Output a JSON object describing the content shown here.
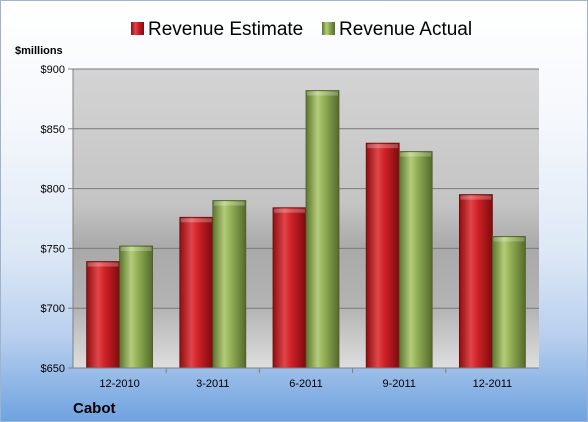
{
  "chart_data": {
    "type": "bar",
    "ylabel": "$millions",
    "ylim": [
      650,
      900
    ],
    "ytick_step": 50,
    "ytick_prefix": "$",
    "categories": [
      "12-2010",
      "3-2011",
      "6-2011",
      "9-2011",
      "12-2011"
    ],
    "series": [
      {
        "name": "Revenue Estimate",
        "color": "#c0181d",
        "values": [
          739,
          776,
          784,
          838,
          795
        ]
      },
      {
        "name": "Revenue Actual",
        "color": "#8aa84a",
        "values": [
          752,
          790,
          882,
          831,
          760
        ]
      }
    ],
    "legend_position": "top",
    "grid": true,
    "company": "Cabot"
  }
}
